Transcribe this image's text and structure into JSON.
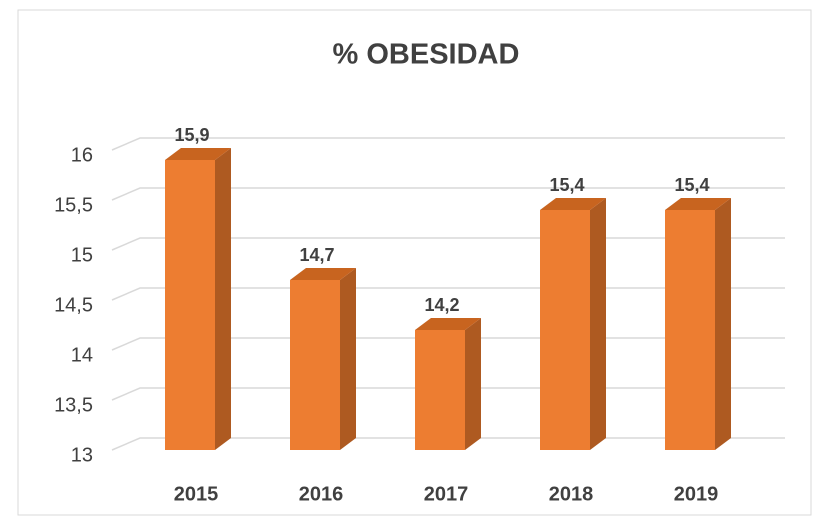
{
  "chart_data": {
    "type": "bar3d",
    "title": "% OBESIDAD",
    "categories": [
      "2015",
      "2016",
      "2017",
      "2018",
      "2019"
    ],
    "values": [
      15.9,
      14.7,
      14.2,
      15.4,
      15.4
    ],
    "value_labels": [
      "15,9",
      "14,7",
      "14,2",
      "15,4",
      "15,4"
    ],
    "color": "#ed7d31",
    "ylim": [
      13,
      16
    ],
    "yticks": [
      13,
      {
        "value": 13.5,
        "label": "13,5"
      },
      14,
      {
        "value": 14.5,
        "label": "14,5"
      },
      15,
      {
        "value": 15.5,
        "label": "15,5"
      },
      16
    ],
    "grid": true
  }
}
